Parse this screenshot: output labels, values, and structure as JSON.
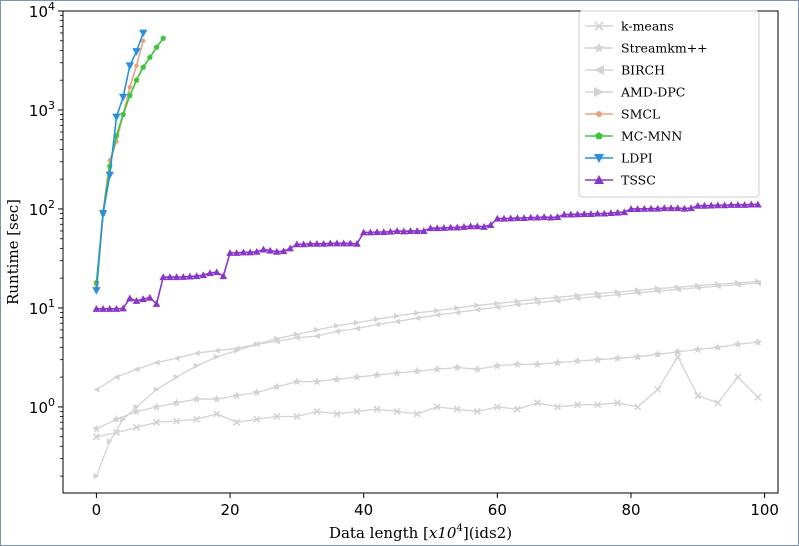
{
  "chart_data": {
    "type": "line",
    "title": "",
    "xlabel": "Data length [x10^4](ids2)",
    "xlabel_parts": {
      "prefix": "Data length [",
      "x": "x10",
      "exp": "4",
      "suffix": "](ids2)"
    },
    "ylabel": "Runtime [sec]",
    "yscale": "log",
    "xlim": [
      -5,
      102
    ],
    "ylim": [
      0.135,
      10000
    ],
    "x_ticks": [
      0,
      20,
      40,
      60,
      80,
      100
    ],
    "y_ticks": [
      {
        "value": 1,
        "base": "10",
        "exp": "0"
      },
      {
        "value": 10,
        "base": "10",
        "exp": "1"
      },
      {
        "value": 100,
        "base": "10",
        "exp": "2"
      },
      {
        "value": 1000,
        "base": "10",
        "exp": "3"
      },
      {
        "value": 10000,
        "base": "10",
        "exp": "4"
      }
    ],
    "grid": false,
    "legend_position": "top-right",
    "series": [
      {
        "name": "k-means",
        "color": "#d3d3d3",
        "marker": "x",
        "x": [
          0,
          3,
          6,
          9,
          12,
          15,
          18,
          21,
          24,
          27,
          30,
          33,
          36,
          39,
          42,
          45,
          48,
          51,
          54,
          57,
          60,
          63,
          66,
          69,
          72,
          75,
          78,
          81,
          84,
          87,
          90,
          93,
          96,
          99
        ],
        "y": [
          0.5,
          0.55,
          0.62,
          0.7,
          0.72,
          0.75,
          0.85,
          0.7,
          0.75,
          0.8,
          0.8,
          0.9,
          0.85,
          0.9,
          0.95,
          0.9,
          0.85,
          1.0,
          0.95,
          0.9,
          1.0,
          0.95,
          1.1,
          1.0,
          1.05,
          1.05,
          1.1,
          1.0,
          1.5,
          3.2,
          1.3,
          1.1,
          2.0,
          1.25
        ]
      },
      {
        "name": "Streamkm++",
        "color": "#d3d3d3",
        "marker": "star",
        "x": [
          0,
          3,
          6,
          9,
          12,
          15,
          18,
          21,
          24,
          27,
          30,
          33,
          36,
          39,
          42,
          45,
          48,
          51,
          54,
          57,
          60,
          63,
          66,
          69,
          72,
          75,
          78,
          81,
          84,
          87,
          90,
          93,
          96,
          99
        ],
        "y": [
          0.6,
          0.75,
          0.9,
          1.0,
          1.1,
          1.2,
          1.2,
          1.3,
          1.4,
          1.6,
          1.8,
          1.8,
          1.9,
          2.0,
          2.1,
          2.2,
          2.3,
          2.4,
          2.5,
          2.4,
          2.6,
          2.7,
          2.7,
          2.8,
          2.9,
          3.0,
          3.1,
          3.2,
          3.4,
          3.6,
          3.8,
          4.0,
          4.3,
          4.5
        ]
      },
      {
        "name": "BIRCH",
        "color": "#d3d3d3",
        "marker": "triangle-left",
        "x": [
          0,
          3,
          6,
          9,
          12,
          15,
          18,
          21,
          24,
          27,
          30,
          33,
          36,
          39,
          42,
          45,
          48,
          51,
          54,
          57,
          60,
          63,
          66,
          69,
          72,
          75,
          78,
          81,
          84,
          87,
          90,
          93,
          96,
          99
        ],
        "y": [
          1.5,
          2.0,
          2.4,
          2.8,
          3.1,
          3.5,
          3.7,
          3.9,
          4.3,
          4.6,
          5.0,
          5.2,
          5.8,
          6.2,
          6.8,
          7.3,
          7.9,
          8.5,
          9.0,
          9.6,
          10.2,
          10.8,
          11.3,
          11.8,
          12.5,
          13.0,
          13.6,
          14.2,
          14.8,
          15.4,
          16.0,
          16.6,
          17.2,
          17.8
        ]
      },
      {
        "name": "AMD-DPC",
        "color": "#d3d3d3",
        "marker": "triangle-right",
        "x": [
          0,
          2,
          4,
          6,
          9,
          12,
          15,
          18,
          21,
          24,
          27,
          30,
          33,
          36,
          39,
          42,
          45,
          48,
          51,
          54,
          57,
          60,
          63,
          66,
          69,
          72,
          75,
          78,
          81,
          84,
          87,
          90,
          93,
          96,
          99
        ],
        "y": [
          0.2,
          0.45,
          0.75,
          1.0,
          1.5,
          2.0,
          2.6,
          3.2,
          3.7,
          4.3,
          4.9,
          5.4,
          6.0,
          6.6,
          7.1,
          7.7,
          8.3,
          8.9,
          9.4,
          10.0,
          10.6,
          11.1,
          11.7,
          12.3,
          12.8,
          13.4,
          14.0,
          14.5,
          15.1,
          15.7,
          16.2,
          16.8,
          17.4,
          17.9,
          18.5
        ]
      },
      {
        "name": "SMCL",
        "color": "#e8a27c",
        "marker": "circle",
        "x": [
          0,
          1,
          2,
          3,
          4,
          5,
          6,
          7
        ],
        "y": [
          17,
          95,
          310,
          480,
          900,
          1700,
          2800,
          5000
        ]
      },
      {
        "name": "MC-MNN",
        "color": "#3cc43c",
        "marker": "pentagon",
        "x": [
          0,
          1,
          2,
          3,
          4,
          5,
          6,
          7,
          8,
          9,
          10
        ],
        "y": [
          18,
          90,
          270,
          550,
          900,
          1400,
          2000,
          2700,
          3400,
          4300,
          5300
        ]
      },
      {
        "name": "LDPI",
        "color": "#2b8fdc",
        "marker": "triangle-down",
        "x": [
          0,
          1,
          2,
          3,
          4,
          5,
          6,
          7
        ],
        "y": [
          15,
          90,
          220,
          850,
          1350,
          2800,
          3900,
          6000
        ]
      },
      {
        "name": "TSSC",
        "color": "#8a37c9",
        "marker": "triangle-up",
        "x": [
          0,
          1,
          2,
          3,
          4,
          5,
          6,
          7,
          8,
          9,
          10,
          11,
          12,
          13,
          14,
          15,
          16,
          17,
          18,
          19,
          20,
          21,
          22,
          23,
          24,
          25,
          26,
          27,
          28,
          29,
          30,
          31,
          32,
          33,
          34,
          35,
          36,
          37,
          38,
          39,
          40,
          41,
          42,
          43,
          44,
          45,
          46,
          47,
          48,
          49,
          50,
          51,
          52,
          53,
          54,
          55,
          56,
          57,
          58,
          59,
          60,
          61,
          62,
          63,
          64,
          65,
          66,
          67,
          68,
          69,
          70,
          71,
          72,
          73,
          74,
          75,
          76,
          77,
          78,
          79,
          80,
          81,
          82,
          83,
          84,
          85,
          86,
          87,
          88,
          89,
          90,
          91,
          92,
          93,
          94,
          95,
          96,
          97,
          98,
          99
        ],
        "y": [
          9.8,
          9.8,
          9.8,
          9.8,
          9.9,
          12.5,
          11.8,
          12.3,
          12.7,
          11,
          20.5,
          20.5,
          20.5,
          20.6,
          20.8,
          21,
          21.5,
          22.5,
          23,
          21,
          36,
          36,
          36.5,
          36.5,
          37,
          39,
          38,
          37,
          37.5,
          40,
          44,
          44,
          44.5,
          44.5,
          44.5,
          45,
          45,
          45,
          45,
          44.5,
          58,
          58,
          58.5,
          58.5,
          59,
          60,
          59.5,
          60,
          60,
          60,
          64,
          64,
          64.5,
          65,
          65,
          66,
          67,
          67,
          66,
          69,
          80,
          80,
          80.5,
          81,
          81,
          82,
          82,
          83,
          82,
          83,
          88,
          88,
          88.5,
          89,
          89,
          90,
          90,
          91,
          92,
          93,
          100,
          100,
          100.5,
          101,
          101,
          102,
          102,
          102,
          101,
          102,
          108,
          108,
          108.5,
          109,
          109,
          110,
          110,
          110,
          111,
          111
        ]
      }
    ]
  }
}
